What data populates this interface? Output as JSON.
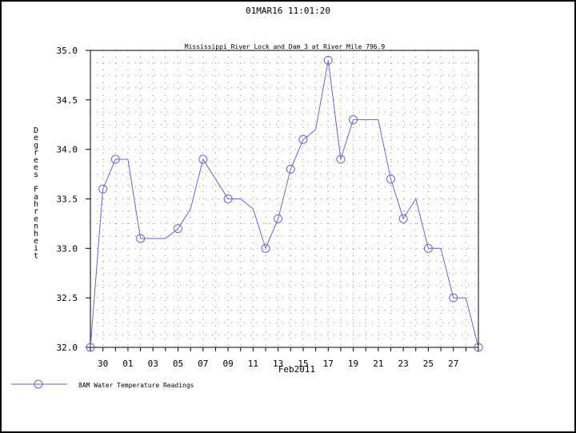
{
  "header": {
    "timestamp": "01MAR16  11:01:20"
  },
  "chart_data": {
    "type": "line",
    "title": "Mississippi River Lock and Dam 3 at River Mile 796.9",
    "ylabel": "Degrees Fahrenheit",
    "xlabel": "Feb2011",
    "ylim": [
      32.0,
      35.0
    ],
    "y_ticks": [
      "32.0",
      "32.5",
      "33.0",
      "33.5",
      "34.0",
      "34.5",
      "35.0"
    ],
    "x_ticks": [
      "30",
      "01",
      "03",
      "05",
      "07",
      "09",
      "11",
      "13",
      "15",
      "17",
      "19",
      "21",
      "23",
      "25",
      "27"
    ],
    "grid": "dotted",
    "legend_position": "bottom-left",
    "colors": {
      "series": "#6666cc",
      "axis": "#000000",
      "grid": "#888888"
    },
    "series": [
      {
        "name": "8AM Water Temperature Readings",
        "marker": "circle",
        "points": [
          {
            "x": "29",
            "y": 32.0
          },
          {
            "x": "30",
            "y": 33.6
          },
          {
            "x": "31",
            "y": 33.9
          },
          {
            "x": "01",
            "y": 33.9
          },
          {
            "x": "02",
            "y": 33.1
          },
          {
            "x": "03",
            "y": 33.1
          },
          {
            "x": "04",
            "y": 33.1
          },
          {
            "x": "05",
            "y": 33.2
          },
          {
            "x": "06",
            "y": 33.4
          },
          {
            "x": "07",
            "y": 33.9
          },
          {
            "x": "08",
            "y": 33.7
          },
          {
            "x": "09",
            "y": 33.5
          },
          {
            "x": "10",
            "y": 33.5
          },
          {
            "x": "11",
            "y": 33.4
          },
          {
            "x": "12",
            "y": 33.0
          },
          {
            "x": "13",
            "y": 33.3
          },
          {
            "x": "14",
            "y": 33.8
          },
          {
            "x": "15",
            "y": 34.1
          },
          {
            "x": "16",
            "y": 34.2
          },
          {
            "x": "17",
            "y": 34.9
          },
          {
            "x": "18",
            "y": 33.9
          },
          {
            "x": "19",
            "y": 34.3
          },
          {
            "x": "20",
            "y": 34.3
          },
          {
            "x": "21",
            "y": 34.3
          },
          {
            "x": "22",
            "y": 33.7
          },
          {
            "x": "23",
            "y": 33.3
          },
          {
            "x": "24",
            "y": 33.5
          },
          {
            "x": "25",
            "y": 33.0
          },
          {
            "x": "26",
            "y": 33.0
          },
          {
            "x": "27",
            "y": 32.5
          },
          {
            "x": "28",
            "y": 32.5
          },
          {
            "x": "01",
            "y": 32.0
          }
        ],
        "marked_indices": [
          0,
          1,
          2,
          4,
          7,
          9,
          11,
          14,
          15,
          16,
          17,
          19,
          20,
          21,
          24,
          25,
          27,
          29,
          31
        ]
      }
    ]
  }
}
